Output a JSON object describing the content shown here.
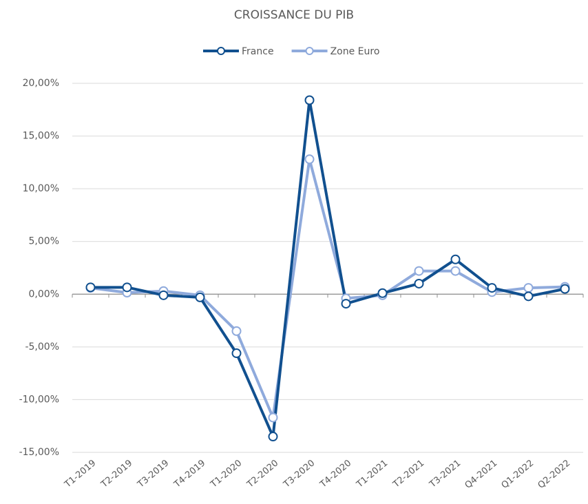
{
  "chart_data": {
    "type": "line",
    "title": "CROISSANCE DU PIB",
    "categories": [
      "T1-2019",
      "T2-2019",
      "T3-2019",
      "T4-2019",
      "T1-2020",
      "T2-2020",
      "T3-2020",
      "T4-2020",
      "T1-2021",
      "T2-2021",
      "T3-2021",
      "Q4-2021",
      "Q1-2022",
      "Q2-2022"
    ],
    "series": [
      {
        "name": "France",
        "color": "#11508f",
        "values": [
          0.65,
          0.65,
          -0.1,
          -0.3,
          -5.6,
          -13.5,
          18.4,
          -0.9,
          0.1,
          1.0,
          3.3,
          0.6,
          -0.2,
          0.5
        ]
      },
      {
        "name": "Zone Euro",
        "color": "#8faadc",
        "values": [
          0.6,
          0.15,
          0.3,
          -0.1,
          -3.5,
          -11.7,
          12.8,
          -0.4,
          -0.1,
          2.2,
          2.2,
          0.2,
          0.6,
          0.7
        ]
      }
    ],
    "ylim": [
      -15,
      20
    ],
    "yticks": [
      {
        "value": -15,
        "label": "-15,00%"
      },
      {
        "value": -10,
        "label": "-10,00%"
      },
      {
        "value": -5,
        "label": "-5,00%"
      },
      {
        "value": 0,
        "label": "0,00%"
      },
      {
        "value": 5,
        "label": "5,00%"
      },
      {
        "value": 10,
        "label": "10,00%"
      },
      {
        "value": 15,
        "label": "15,00%"
      },
      {
        "value": 20,
        "label": "20,00%"
      }
    ],
    "grid": true,
    "legend": "top"
  }
}
